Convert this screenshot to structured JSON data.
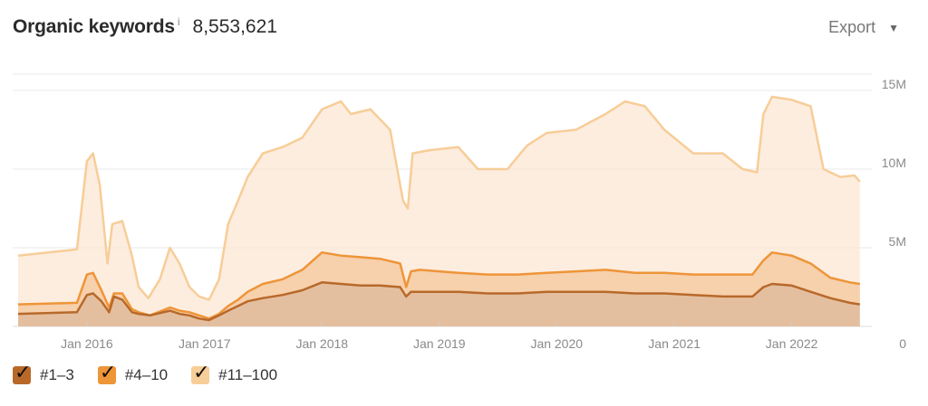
{
  "header": {
    "title": "Organic keywords",
    "info": "i",
    "total": "8,553,621",
    "export_label": "Export"
  },
  "colors": {
    "top3": "#b8692a",
    "top10": "#ee9538",
    "top100": "#f7cd98",
    "top3_fill": "#dcb89a",
    "top10_fill": "#f3c396",
    "top100_fill": "#fce7d4",
    "grid": "#e9e9e9"
  },
  "legend": [
    {
      "label": "#1–3",
      "color": "#b8692a",
      "checked": true
    },
    {
      "label": "#4–10",
      "color": "#ee9538",
      "checked": true
    },
    {
      "label": "#11–100",
      "color": "#f7cd98",
      "checked": true
    }
  ],
  "chart_data": {
    "type": "area",
    "stacked": true,
    "x_ticks": [
      "Jan 2016",
      "Jan 2017",
      "Jan 2018",
      "Jan 2019",
      "Jan 2020",
      "Jan 2021",
      "Jan 2022"
    ],
    "y_ticks": [
      "15M",
      "10M",
      "5M",
      "0"
    ],
    "ylim": [
      0,
      15000000
    ],
    "xlim": [
      "2015-06-01",
      "2022-08-10"
    ],
    "grid": true,
    "series": [
      {
        "name": "#1–3",
        "points": [
          [
            "2015-06-01",
            0.8
          ],
          [
            "2015-12-01",
            0.9
          ],
          [
            "2016-01-01",
            2.0
          ],
          [
            "2016-01-20",
            2.1
          ],
          [
            "2016-02-15",
            1.6
          ],
          [
            "2016-03-10",
            0.9
          ],
          [
            "2016-03-25",
            1.9
          ],
          [
            "2016-04-20",
            1.7
          ],
          [
            "2016-05-20",
            0.9
          ],
          [
            "2016-06-10",
            0.8
          ],
          [
            "2016-07-15",
            0.7
          ],
          [
            "2016-09-15",
            1.0
          ],
          [
            "2016-10-15",
            0.8
          ],
          [
            "2016-11-15",
            0.7
          ],
          [
            "2016-12-15",
            0.5
          ],
          [
            "2017-01-15",
            0.4
          ],
          [
            "2017-02-15",
            0.7
          ],
          [
            "2017-03-15",
            1.0
          ],
          [
            "2017-04-15",
            1.3
          ],
          [
            "2017-05-15",
            1.6
          ],
          [
            "2017-07-01",
            1.8
          ],
          [
            "2017-09-01",
            2.0
          ],
          [
            "2017-11-01",
            2.3
          ],
          [
            "2018-01-01",
            2.8
          ],
          [
            "2018-03-01",
            2.7
          ],
          [
            "2018-05-01",
            2.6
          ],
          [
            "2018-07-01",
            2.6
          ],
          [
            "2018-09-01",
            2.5
          ],
          [
            "2018-09-20",
            1.9
          ],
          [
            "2018-10-05",
            2.2
          ],
          [
            "2018-11-01",
            2.2
          ],
          [
            "2019-01-01",
            2.2
          ],
          [
            "2019-03-01",
            2.2
          ],
          [
            "2019-06-01",
            2.1
          ],
          [
            "2019-09-01",
            2.1
          ],
          [
            "2019-12-01",
            2.2
          ],
          [
            "2020-03-01",
            2.2
          ],
          [
            "2020-06-01",
            2.2
          ],
          [
            "2020-09-01",
            2.1
          ],
          [
            "2020-12-01",
            2.1
          ],
          [
            "2021-03-01",
            2.0
          ],
          [
            "2021-06-01",
            1.9
          ],
          [
            "2021-09-01",
            1.9
          ],
          [
            "2021-10-05",
            2.5
          ],
          [
            "2021-11-01",
            2.7
          ],
          [
            "2022-01-01",
            2.6
          ],
          [
            "2022-03-01",
            2.2
          ],
          [
            "2022-05-01",
            1.8
          ],
          [
            "2022-07-01",
            1.5
          ],
          [
            "2022-08-01",
            1.4
          ]
        ]
      },
      {
        "name": "#4–10",
        "points": [
          [
            "2015-06-01",
            1.4
          ],
          [
            "2015-12-01",
            1.5
          ],
          [
            "2016-01-01",
            3.3
          ],
          [
            "2016-01-20",
            3.4
          ],
          [
            "2016-02-15",
            2.3
          ],
          [
            "2016-03-10",
            1.2
          ],
          [
            "2016-03-25",
            2.1
          ],
          [
            "2016-04-20",
            2.1
          ],
          [
            "2016-05-20",
            1.1
          ],
          [
            "2016-06-10",
            0.9
          ],
          [
            "2016-07-15",
            0.7
          ],
          [
            "2016-09-15",
            1.2
          ],
          [
            "2016-10-15",
            1.0
          ],
          [
            "2016-11-15",
            0.9
          ],
          [
            "2016-12-15",
            0.7
          ],
          [
            "2017-01-15",
            0.5
          ],
          [
            "2017-02-15",
            0.8
          ],
          [
            "2017-03-15",
            1.3
          ],
          [
            "2017-04-15",
            1.7
          ],
          [
            "2017-05-15",
            2.2
          ],
          [
            "2017-07-01",
            2.7
          ],
          [
            "2017-09-01",
            3.0
          ],
          [
            "2017-11-01",
            3.6
          ],
          [
            "2018-01-01",
            4.7
          ],
          [
            "2018-03-01",
            4.5
          ],
          [
            "2018-05-01",
            4.4
          ],
          [
            "2018-07-01",
            4.3
          ],
          [
            "2018-09-01",
            4.0
          ],
          [
            "2018-09-20",
            2.5
          ],
          [
            "2018-10-05",
            3.5
          ],
          [
            "2018-11-01",
            3.6
          ],
          [
            "2019-01-01",
            3.5
          ],
          [
            "2019-03-01",
            3.4
          ],
          [
            "2019-06-01",
            3.3
          ],
          [
            "2019-09-01",
            3.3
          ],
          [
            "2019-12-01",
            3.4
          ],
          [
            "2020-03-01",
            3.5
          ],
          [
            "2020-06-01",
            3.6
          ],
          [
            "2020-09-01",
            3.4
          ],
          [
            "2020-12-01",
            3.4
          ],
          [
            "2021-03-01",
            3.3
          ],
          [
            "2021-06-01",
            3.3
          ],
          [
            "2021-09-01",
            3.3
          ],
          [
            "2021-10-05",
            4.2
          ],
          [
            "2021-11-01",
            4.7
          ],
          [
            "2022-01-01",
            4.5
          ],
          [
            "2022-03-01",
            4.0
          ],
          [
            "2022-05-01",
            3.1
          ],
          [
            "2022-07-01",
            2.8
          ],
          [
            "2022-08-01",
            2.7
          ]
        ]
      },
      {
        "name": "#11–100",
        "points": [
          [
            "2015-06-01",
            4.5
          ],
          [
            "2015-12-01",
            4.9
          ],
          [
            "2016-01-01",
            10.5
          ],
          [
            "2016-01-20",
            11.0
          ],
          [
            "2016-02-10",
            9.0
          ],
          [
            "2016-03-05",
            4.0
          ],
          [
            "2016-03-20",
            6.5
          ],
          [
            "2016-04-20",
            6.7
          ],
          [
            "2016-05-20",
            4.5
          ],
          [
            "2016-06-10",
            2.5
          ],
          [
            "2016-07-10",
            1.8
          ],
          [
            "2016-08-15",
            3.0
          ],
          [
            "2016-09-15",
            5.0
          ],
          [
            "2016-10-15",
            4.0
          ],
          [
            "2016-11-15",
            2.5
          ],
          [
            "2016-12-15",
            1.9
          ],
          [
            "2017-01-15",
            1.7
          ],
          [
            "2017-02-15",
            3.0
          ],
          [
            "2017-03-15",
            6.5
          ],
          [
            "2017-04-15",
            8.0
          ],
          [
            "2017-05-15",
            9.5
          ],
          [
            "2017-07-01",
            11.0
          ],
          [
            "2017-09-01",
            11.4
          ],
          [
            "2017-11-01",
            12.0
          ],
          [
            "2018-01-01",
            13.8
          ],
          [
            "2018-03-01",
            14.3
          ],
          [
            "2018-04-01",
            13.5
          ],
          [
            "2018-06-01",
            13.8
          ],
          [
            "2018-08-01",
            12.5
          ],
          [
            "2018-09-10",
            8.0
          ],
          [
            "2018-09-25",
            7.5
          ],
          [
            "2018-10-10",
            11.0
          ],
          [
            "2018-12-01",
            11.2
          ],
          [
            "2019-03-01",
            11.4
          ],
          [
            "2019-05-01",
            10.0
          ],
          [
            "2019-08-01",
            10.0
          ],
          [
            "2019-10-01",
            11.5
          ],
          [
            "2019-12-01",
            12.3
          ],
          [
            "2020-03-01",
            12.5
          ],
          [
            "2020-06-01",
            13.5
          ],
          [
            "2020-08-01",
            14.3
          ],
          [
            "2020-10-01",
            14.0
          ],
          [
            "2020-12-01",
            12.5
          ],
          [
            "2021-03-01",
            11.0
          ],
          [
            "2021-06-01",
            11.0
          ],
          [
            "2021-08-01",
            10.0
          ],
          [
            "2021-09-15",
            9.8
          ],
          [
            "2021-10-05",
            13.5
          ],
          [
            "2021-11-01",
            14.6
          ],
          [
            "2022-01-01",
            14.4
          ],
          [
            "2022-03-01",
            14.0
          ],
          [
            "2022-04-10",
            10.0
          ],
          [
            "2022-06-01",
            9.5
          ],
          [
            "2022-07-15",
            9.6
          ],
          [
            "2022-08-01",
            9.2
          ]
        ]
      }
    ]
  }
}
